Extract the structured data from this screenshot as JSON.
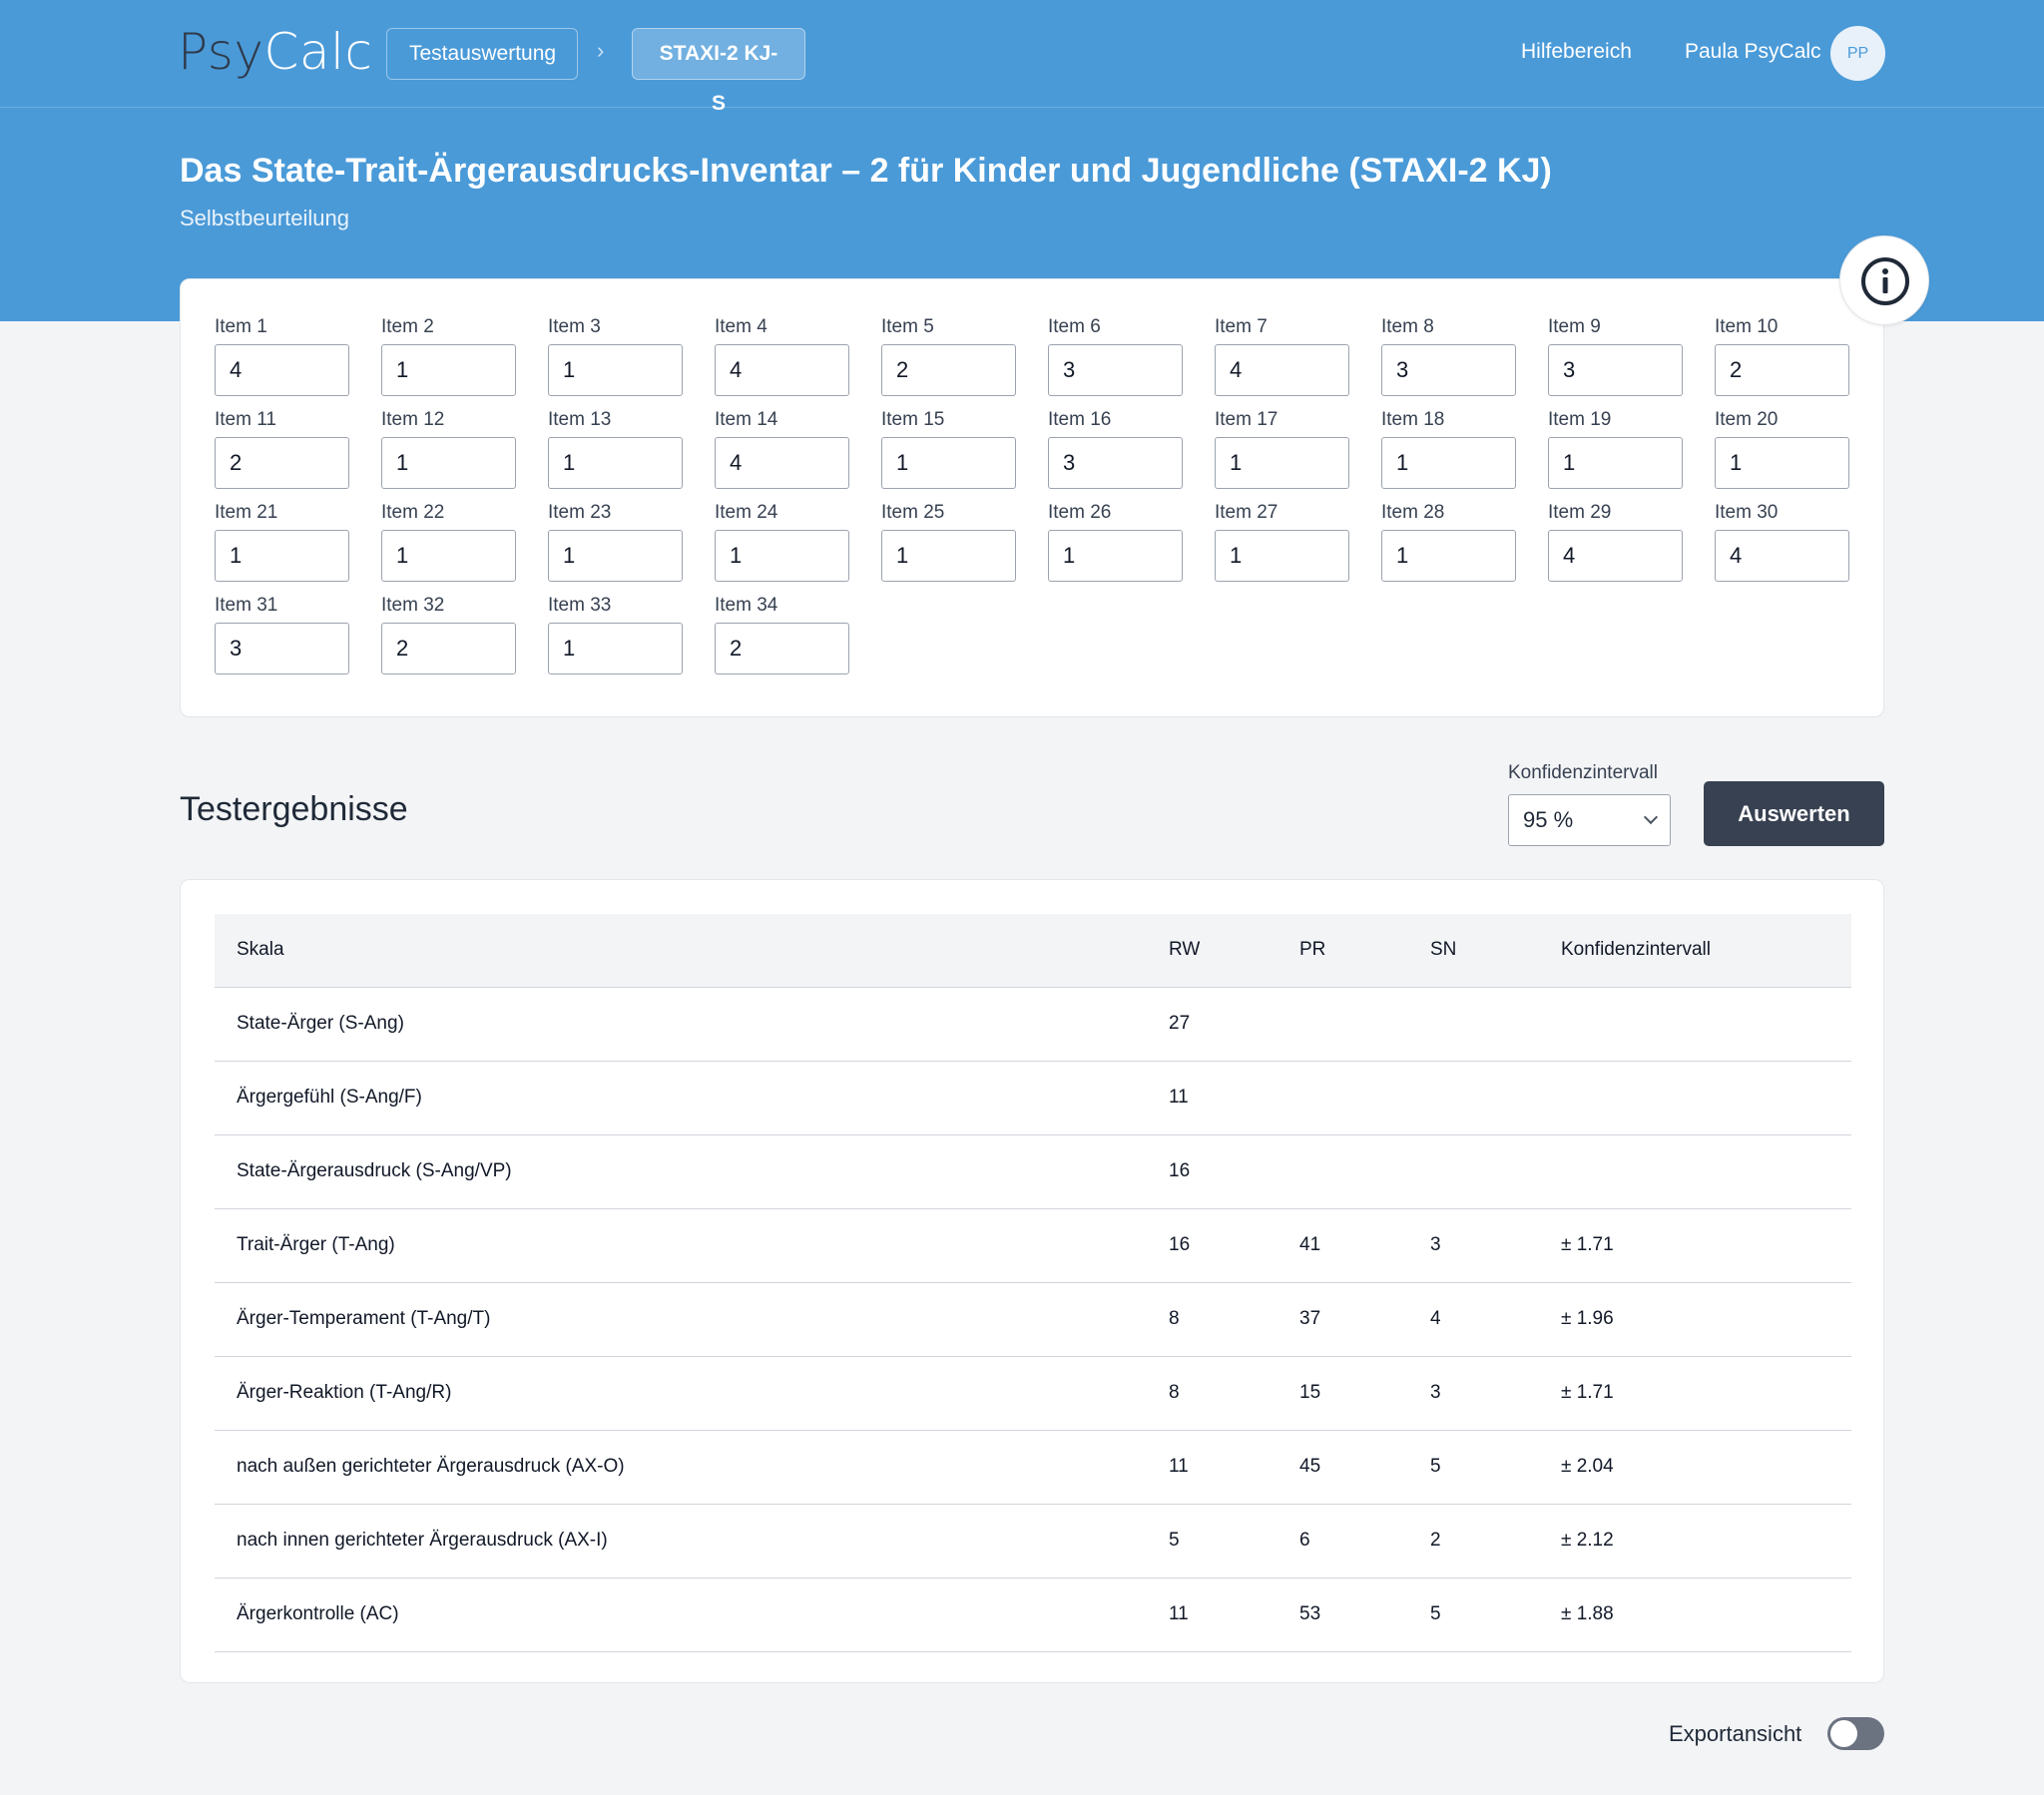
{
  "brand": {
    "part1": "Psy",
    "part2": "Calc"
  },
  "breadcrumb": {
    "first": "Testauswertung",
    "separator": "›",
    "current": "STAXI-2 KJ-S"
  },
  "nav": {
    "help": "Hilfebereich",
    "user": "Paula PsyCalc",
    "avatar_initials": "PP"
  },
  "header": {
    "title": "Das State-Trait-Ärgerausdrucks-Inventar – 2 für Kinder und Jugendliche (STAXI-2 KJ)",
    "subtitle": "Selbstbeurteilung"
  },
  "items": [
    {
      "label": "Item 1",
      "value": "4"
    },
    {
      "label": "Item 2",
      "value": "1"
    },
    {
      "label": "Item 3",
      "value": "1"
    },
    {
      "label": "Item 4",
      "value": "4"
    },
    {
      "label": "Item 5",
      "value": "2"
    },
    {
      "label": "Item 6",
      "value": "3"
    },
    {
      "label": "Item 7",
      "value": "4"
    },
    {
      "label": "Item 8",
      "value": "3"
    },
    {
      "label": "Item 9",
      "value": "3"
    },
    {
      "label": "Item 10",
      "value": "2"
    },
    {
      "label": "Item 11",
      "value": "2"
    },
    {
      "label": "Item 12",
      "value": "1"
    },
    {
      "label": "Item 13",
      "value": "1"
    },
    {
      "label": "Item 14",
      "value": "4"
    },
    {
      "label": "Item 15",
      "value": "1"
    },
    {
      "label": "Item 16",
      "value": "3"
    },
    {
      "label": "Item 17",
      "value": "1"
    },
    {
      "label": "Item 18",
      "value": "1"
    },
    {
      "label": "Item 19",
      "value": "1"
    },
    {
      "label": "Item 20",
      "value": "1"
    },
    {
      "label": "Item 21",
      "value": "1"
    },
    {
      "label": "Item 22",
      "value": "1"
    },
    {
      "label": "Item 23",
      "value": "1"
    },
    {
      "label": "Item 24",
      "value": "1"
    },
    {
      "label": "Item 25",
      "value": "1"
    },
    {
      "label": "Item 26",
      "value": "1"
    },
    {
      "label": "Item 27",
      "value": "1"
    },
    {
      "label": "Item 28",
      "value": "1"
    },
    {
      "label": "Item 29",
      "value": "4"
    },
    {
      "label": "Item 30",
      "value": "4"
    },
    {
      "label": "Item 31",
      "value": "3"
    },
    {
      "label": "Item 32",
      "value": "2"
    },
    {
      "label": "Item 33",
      "value": "1"
    },
    {
      "label": "Item 34",
      "value": "2"
    }
  ],
  "results": {
    "title": "Testergebnisse",
    "ci_label": "Konfidenzintervall",
    "ci_value": "95 %",
    "evaluate_label": "Auswerten",
    "columns": [
      "Skala",
      "RW",
      "PR",
      "SN",
      "Konfidenzintervall"
    ],
    "rows": [
      {
        "scale": "State-Ärger (S-Ang)",
        "rw": "27",
        "pr": "",
        "sn": "",
        "ci": ""
      },
      {
        "scale": "Ärgergefühl (S-Ang/F)",
        "rw": "11",
        "pr": "",
        "sn": "",
        "ci": ""
      },
      {
        "scale": "State-Ärgerausdruck (S-Ang/VP)",
        "rw": "16",
        "pr": "",
        "sn": "",
        "ci": ""
      },
      {
        "scale": "Trait-Ärger (T-Ang)",
        "rw": "16",
        "pr": "41",
        "sn": "3",
        "ci": "± 1.71"
      },
      {
        "scale": "Ärger-Temperament (T-Ang/T)",
        "rw": "8",
        "pr": "37",
        "sn": "4",
        "ci": "± 1.96"
      },
      {
        "scale": "Ärger-Reaktion (T-Ang/R)",
        "rw": "8",
        "pr": "15",
        "sn": "3",
        "ci": "± 1.71"
      },
      {
        "scale": "nach außen gerichteter Ärgerausdruck (AX-O)",
        "rw": "11",
        "pr": "45",
        "sn": "5",
        "ci": "± 2.04"
      },
      {
        "scale": "nach innen gerichteter Ärgerausdruck (AX-I)",
        "rw": "5",
        "pr": "6",
        "sn": "2",
        "ci": "± 2.12"
      },
      {
        "scale": "Ärgerkontrolle (AC)",
        "rw": "11",
        "pr": "53",
        "sn": "5",
        "ci": "± 1.88"
      }
    ]
  },
  "export_toggle": {
    "label": "Exportansicht",
    "on": false
  },
  "colors": {
    "primary": "#4a9ad8",
    "dark_button": "#374151",
    "background": "#f3f4f6"
  }
}
